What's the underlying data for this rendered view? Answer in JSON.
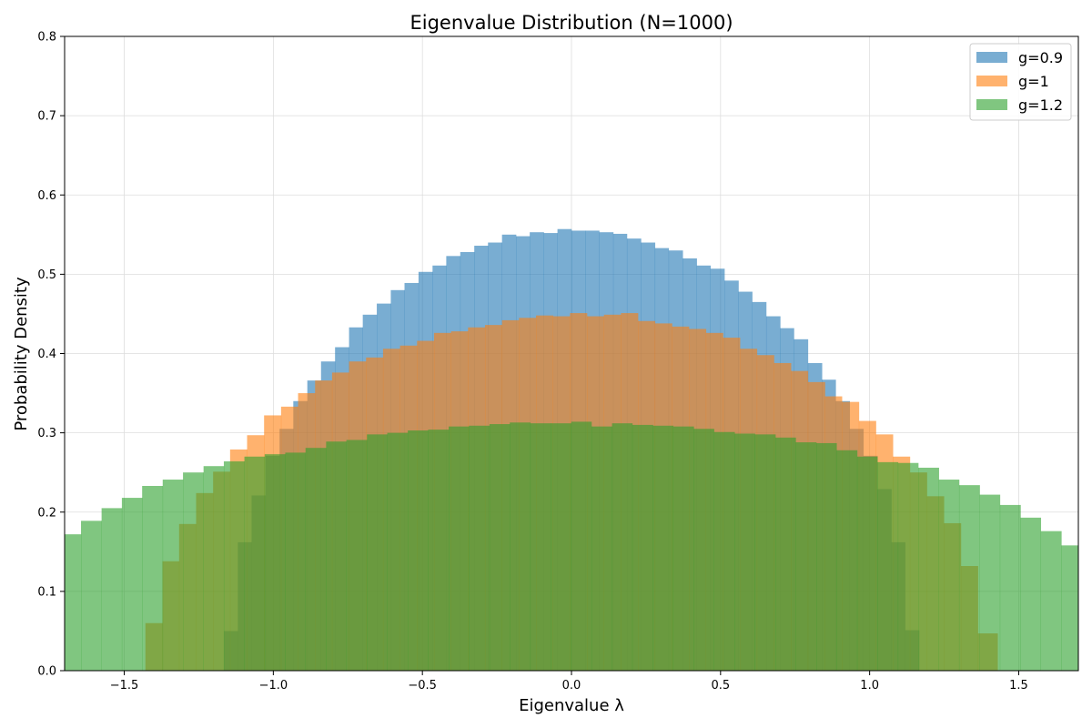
{
  "chart_data": {
    "type": "bar",
    "title": "Eigenvalue Distribution (N=1000)",
    "xlabel": "Eigenvalue λ",
    "ylabel": "Probability Density",
    "xlim": [
      -1.7,
      1.7
    ],
    "ylim": [
      0,
      0.8
    ],
    "xticks": [
      -1.5,
      -1.0,
      -0.5,
      0.0,
      0.5,
      1.0,
      1.5
    ],
    "xtick_labels": [
      "−1.5",
      "−1.0",
      "−0.5",
      "0.0",
      "0.5",
      "1.0",
      "1.5"
    ],
    "yticks": [
      0.0,
      0.1,
      0.2,
      0.3,
      0.4,
      0.5,
      0.6,
      0.7,
      0.8
    ],
    "ytick_labels": [
      "0.0",
      "0.1",
      "0.2",
      "0.3",
      "0.4",
      "0.5",
      "0.6",
      "0.7",
      "0.8"
    ],
    "grid": true,
    "legend_position": "top-right",
    "series": [
      {
        "name": "g=0.9",
        "color": "#1f77b4",
        "opacity": 0.6,
        "bins": [
          [
            -1.166,
            -1.119,
            0.05
          ],
          [
            -1.119,
            -1.073,
            0.162
          ],
          [
            -1.073,
            -1.026,
            0.221
          ],
          [
            -1.026,
            -0.979,
            0.271
          ],
          [
            -0.979,
            -0.933,
            0.305
          ],
          [
            -0.933,
            -0.886,
            0.34
          ],
          [
            -0.886,
            -0.84,
            0.366
          ],
          [
            -0.84,
            -0.793,
            0.39
          ],
          [
            -0.793,
            -0.746,
            0.408
          ],
          [
            -0.746,
            -0.7,
            0.433
          ],
          [
            -0.7,
            -0.653,
            0.449
          ],
          [
            -0.653,
            -0.606,
            0.463
          ],
          [
            -0.606,
            -0.56,
            0.48
          ],
          [
            -0.56,
            -0.513,
            0.489
          ],
          [
            -0.513,
            -0.466,
            0.503
          ],
          [
            -0.466,
            -0.42,
            0.511
          ],
          [
            -0.42,
            -0.373,
            0.523
          ],
          [
            -0.373,
            -0.326,
            0.528
          ],
          [
            -0.326,
            -0.28,
            0.536
          ],
          [
            -0.28,
            -0.233,
            0.54
          ],
          [
            -0.233,
            -0.186,
            0.55
          ],
          [
            -0.186,
            -0.14,
            0.548
          ],
          [
            -0.14,
            -0.093,
            0.553
          ],
          [
            -0.093,
            -0.047,
            0.552
          ],
          [
            -0.047,
            0.0,
            0.557
          ],
          [
            0.0,
            0.047,
            0.555
          ],
          [
            0.047,
            0.093,
            0.555
          ],
          [
            0.093,
            0.14,
            0.553
          ],
          [
            0.14,
            0.186,
            0.551
          ],
          [
            0.186,
            0.233,
            0.545
          ],
          [
            0.233,
            0.28,
            0.54
          ],
          [
            0.28,
            0.326,
            0.533
          ],
          [
            0.326,
            0.373,
            0.53
          ],
          [
            0.373,
            0.42,
            0.52
          ],
          [
            0.42,
            0.466,
            0.511
          ],
          [
            0.466,
            0.513,
            0.507
          ],
          [
            0.513,
            0.56,
            0.492
          ],
          [
            0.56,
            0.606,
            0.478
          ],
          [
            0.606,
            0.653,
            0.465
          ],
          [
            0.653,
            0.7,
            0.447
          ],
          [
            0.7,
            0.746,
            0.432
          ],
          [
            0.746,
            0.793,
            0.418
          ],
          [
            0.793,
            0.84,
            0.388
          ],
          [
            0.84,
            0.886,
            0.367
          ],
          [
            0.886,
            0.933,
            0.34
          ],
          [
            0.933,
            0.979,
            0.305
          ],
          [
            0.979,
            1.026,
            0.271
          ],
          [
            1.026,
            1.073,
            0.229
          ],
          [
            1.073,
            1.119,
            0.162
          ],
          [
            1.119,
            1.166,
            0.051
          ]
        ]
      },
      {
        "name": "g=1",
        "color": "#ff7f0e",
        "opacity": 0.6,
        "bins": [
          [
            -1.429,
            -1.372,
            0.06
          ],
          [
            -1.372,
            -1.316,
            0.138
          ],
          [
            -1.316,
            -1.259,
            0.185
          ],
          [
            -1.259,
            -1.202,
            0.224
          ],
          [
            -1.202,
            -1.145,
            0.251
          ],
          [
            -1.145,
            -1.088,
            0.279
          ],
          [
            -1.088,
            -1.031,
            0.297
          ],
          [
            -1.031,
            -0.974,
            0.322
          ],
          [
            -0.974,
            -0.917,
            0.333
          ],
          [
            -0.917,
            -0.86,
            0.35
          ],
          [
            -0.86,
            -0.803,
            0.366
          ],
          [
            -0.803,
            -0.746,
            0.376
          ],
          [
            -0.746,
            -0.689,
            0.39
          ],
          [
            -0.689,
            -0.632,
            0.395
          ],
          [
            -0.632,
            -0.575,
            0.406
          ],
          [
            -0.575,
            -0.518,
            0.41
          ],
          [
            -0.518,
            -0.461,
            0.416
          ],
          [
            -0.461,
            -0.404,
            0.426
          ],
          [
            -0.404,
            -0.347,
            0.428
          ],
          [
            -0.347,
            -0.29,
            0.433
          ],
          [
            -0.29,
            -0.233,
            0.436
          ],
          [
            -0.233,
            -0.176,
            0.442
          ],
          [
            -0.176,
            -0.119,
            0.445
          ],
          [
            -0.119,
            -0.062,
            0.448
          ],
          [
            -0.062,
            -0.005,
            0.447
          ],
          [
            -0.005,
            0.052,
            0.451
          ],
          [
            0.052,
            0.109,
            0.447
          ],
          [
            0.109,
            0.166,
            0.449
          ],
          [
            0.166,
            0.223,
            0.451
          ],
          [
            0.223,
            0.28,
            0.441
          ],
          [
            0.28,
            0.337,
            0.438
          ],
          [
            0.337,
            0.394,
            0.434
          ],
          [
            0.394,
            0.451,
            0.431
          ],
          [
            0.451,
            0.508,
            0.426
          ],
          [
            0.508,
            0.565,
            0.42
          ],
          [
            0.565,
            0.622,
            0.406
          ],
          [
            0.622,
            0.679,
            0.398
          ],
          [
            0.679,
            0.736,
            0.388
          ],
          [
            0.736,
            0.793,
            0.378
          ],
          [
            0.793,
            0.85,
            0.364
          ],
          [
            0.85,
            0.907,
            0.346
          ],
          [
            0.907,
            0.964,
            0.339
          ],
          [
            0.964,
            1.021,
            0.315
          ],
          [
            1.021,
            1.078,
            0.298
          ],
          [
            1.078,
            1.135,
            0.27
          ],
          [
            1.135,
            1.192,
            0.25
          ],
          [
            1.192,
            1.249,
            0.22
          ],
          [
            1.249,
            1.306,
            0.186
          ],
          [
            1.306,
            1.363,
            0.132
          ],
          [
            1.363,
            1.429,
            0.047
          ]
        ]
      },
      {
        "name": "g=1.2",
        "color": "#2ca02c",
        "opacity": 0.6,
        "bins": [
          [
            -1.713,
            -1.645,
            0.172
          ],
          [
            -1.645,
            -1.576,
            0.189
          ],
          [
            -1.576,
            -1.508,
            0.205
          ],
          [
            -1.508,
            -1.44,
            0.218
          ],
          [
            -1.44,
            -1.371,
            0.233
          ],
          [
            -1.371,
            -1.303,
            0.241
          ],
          [
            -1.303,
            -1.234,
            0.25
          ],
          [
            -1.234,
            -1.166,
            0.258
          ],
          [
            -1.166,
            -1.097,
            0.264
          ],
          [
            -1.097,
            -1.029,
            0.27
          ],
          [
            -1.029,
            -0.96,
            0.273
          ],
          [
            -0.96,
            -0.892,
            0.275
          ],
          [
            -0.892,
            -0.823,
            0.281
          ],
          [
            -0.823,
            -0.755,
            0.289
          ],
          [
            -0.755,
            -0.686,
            0.291
          ],
          [
            -0.686,
            -0.618,
            0.298
          ],
          [
            -0.618,
            -0.549,
            0.3
          ],
          [
            -0.549,
            -0.481,
            0.303
          ],
          [
            -0.481,
            -0.412,
            0.304
          ],
          [
            -0.412,
            -0.344,
            0.308
          ],
          [
            -0.344,
            -0.275,
            0.309
          ],
          [
            -0.275,
            -0.207,
            0.311
          ],
          [
            -0.207,
            -0.138,
            0.313
          ],
          [
            -0.138,
            -0.07,
            0.312
          ],
          [
            -0.07,
            -0.001,
            0.312
          ],
          [
            -0.001,
            0.067,
            0.314
          ],
          [
            0.067,
            0.136,
            0.308
          ],
          [
            0.136,
            0.204,
            0.312
          ],
          [
            0.204,
            0.273,
            0.31
          ],
          [
            0.273,
            0.341,
            0.309
          ],
          [
            0.341,
            0.41,
            0.308
          ],
          [
            0.41,
            0.478,
            0.305
          ],
          [
            0.478,
            0.547,
            0.301
          ],
          [
            0.547,
            0.615,
            0.299
          ],
          [
            0.615,
            0.684,
            0.298
          ],
          [
            0.684,
            0.752,
            0.294
          ],
          [
            0.752,
            0.821,
            0.288
          ],
          [
            0.821,
            0.889,
            0.287
          ],
          [
            0.889,
            0.958,
            0.278
          ],
          [
            0.958,
            1.026,
            0.27
          ],
          [
            1.026,
            1.095,
            0.263
          ],
          [
            1.095,
            1.163,
            0.262
          ],
          [
            1.163,
            1.232,
            0.256
          ],
          [
            1.232,
            1.3,
            0.241
          ],
          [
            1.3,
            1.369,
            0.234
          ],
          [
            1.369,
            1.437,
            0.222
          ],
          [
            1.437,
            1.506,
            0.209
          ],
          [
            1.506,
            1.574,
            0.193
          ],
          [
            1.574,
            1.643,
            0.176
          ],
          [
            1.643,
            1.711,
            0.158
          ]
        ]
      }
    ]
  }
}
